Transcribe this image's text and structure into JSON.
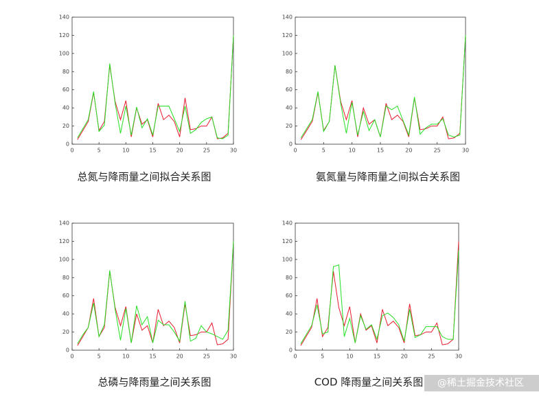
{
  "chart_data": [
    {
      "type": "line",
      "title": "总氮与降雨量之间拟合关系图",
      "x": [
        1,
        2,
        3,
        4,
        5,
        6,
        7,
        8,
        9,
        10,
        11,
        12,
        13,
        14,
        15,
        16,
        17,
        18,
        19,
        20,
        21,
        22,
        23,
        24,
        25,
        26,
        27,
        28,
        29,
        30
      ],
      "series": [
        {
          "color": "#e8192c",
          "values": [
            5,
            15,
            25,
            57,
            15,
            25,
            87,
            47,
            27,
            48,
            8,
            40,
            22,
            27,
            8,
            45,
            27,
            32,
            25,
            8,
            51,
            16,
            17,
            20,
            20,
            30,
            6,
            7,
            12,
            120
          ]
        },
        {
          "color": "#22e022",
          "values": [
            7,
            17,
            27,
            58,
            14,
            21,
            89,
            45,
            12,
            42,
            10,
            41,
            18,
            28,
            10,
            42,
            42,
            42,
            28,
            14,
            42,
            12,
            16,
            24,
            28,
            30,
            7,
            6,
            10,
            120
          ]
        }
      ],
      "xlim": [
        0,
        30
      ],
      "ylim": [
        0,
        140
      ],
      "xticks": [
        0,
        5,
        10,
        15,
        20,
        25,
        30
      ],
      "yticks": [
        0,
        20,
        40,
        60,
        80,
        100,
        120,
        140
      ]
    },
    {
      "type": "line",
      "title": "氨氮量与降雨量之间拟合关系图",
      "x": [
        1,
        2,
        3,
        4,
        5,
        6,
        7,
        8,
        9,
        10,
        11,
        12,
        13,
        14,
        15,
        16,
        17,
        18,
        19,
        20,
        21,
        22,
        23,
        24,
        25,
        26,
        27,
        28,
        29,
        30
      ],
      "series": [
        {
          "color": "#e8192c",
          "values": [
            5,
            15,
            25,
            57,
            15,
            25,
            87,
            47,
            27,
            48,
            8,
            40,
            22,
            27,
            8,
            45,
            27,
            32,
            25,
            8,
            51,
            16,
            17,
            20,
            20,
            30,
            6,
            7,
            12,
            120
          ]
        },
        {
          "color": "#22e022",
          "values": [
            7,
            17,
            27,
            58,
            14,
            25,
            87,
            45,
            12,
            46,
            10,
            36,
            15,
            27,
            8,
            42,
            38,
            42,
            26,
            10,
            52,
            11,
            18,
            22,
            22,
            28,
            10,
            8,
            10,
            120
          ]
        }
      ],
      "xlim": [
        0,
        30
      ],
      "ylim": [
        0,
        140
      ],
      "xticks": [
        0,
        5,
        10,
        15,
        20,
        25,
        30
      ],
      "yticks": [
        0,
        20,
        40,
        60,
        80,
        100,
        120,
        140
      ]
    },
    {
      "type": "line",
      "title": "总磷与降雨量之间关系图",
      "x": [
        1,
        2,
        3,
        4,
        5,
        6,
        7,
        8,
        9,
        10,
        11,
        12,
        13,
        14,
        15,
        16,
        17,
        18,
        19,
        20,
        21,
        22,
        23,
        24,
        25,
        26,
        27,
        28,
        29,
        30
      ],
      "series": [
        {
          "color": "#e8192c",
          "values": [
            5,
            15,
            25,
            57,
            15,
            25,
            87,
            47,
            27,
            48,
            8,
            40,
            22,
            27,
            8,
            45,
            27,
            32,
            25,
            8,
            51,
            16,
            17,
            20,
            20,
            30,
            6,
            7,
            12,
            120
          ]
        },
        {
          "color": "#22e022",
          "values": [
            7,
            17,
            25,
            52,
            15,
            28,
            88,
            45,
            11,
            46,
            8,
            49,
            28,
            37,
            8,
            33,
            28,
            28,
            20,
            10,
            54,
            10,
            13,
            27,
            20,
            18,
            15,
            12,
            22,
            120
          ]
        }
      ],
      "xlim": [
        0,
        30
      ],
      "ylim": [
        0,
        140
      ],
      "xticks": [
        0,
        5,
        10,
        15,
        20,
        25,
        30
      ],
      "yticks": [
        0,
        20,
        40,
        60,
        80,
        100,
        120,
        140
      ]
    },
    {
      "type": "line",
      "title": "COD 降雨量之间关系图",
      "x": [
        1,
        2,
        3,
        4,
        5,
        6,
        7,
        8,
        9,
        10,
        11,
        12,
        13,
        14,
        15,
        16,
        17,
        18,
        19,
        20,
        21,
        22,
        23,
        24,
        25,
        26,
        27,
        28,
        29,
        30
      ],
      "series": [
        {
          "color": "#e8192c",
          "values": [
            5,
            15,
            25,
            57,
            15,
            25,
            87,
            47,
            27,
            48,
            8,
            40,
            22,
            27,
            8,
            45,
            27,
            32,
            25,
            8,
            51,
            16,
            17,
            20,
            20,
            30,
            6,
            7,
            12,
            120
          ]
        },
        {
          "color": "#22e022",
          "values": [
            7,
            17,
            27,
            50,
            18,
            20,
            92,
            94,
            15,
            35,
            8,
            38,
            23,
            28,
            12,
            38,
            41,
            36,
            28,
            10,
            45,
            14,
            17,
            26,
            26,
            26,
            15,
            12,
            12,
            110
          ]
        }
      ],
      "xlim": [
        0,
        30
      ],
      "ylim": [
        0,
        140
      ],
      "xticks": [
        0,
        5,
        10,
        15,
        20,
        25,
        30
      ],
      "yticks": [
        0,
        20,
        40,
        60,
        80,
        100,
        120,
        140
      ]
    }
  ],
  "watermark": "@稀土掘金技术社区"
}
